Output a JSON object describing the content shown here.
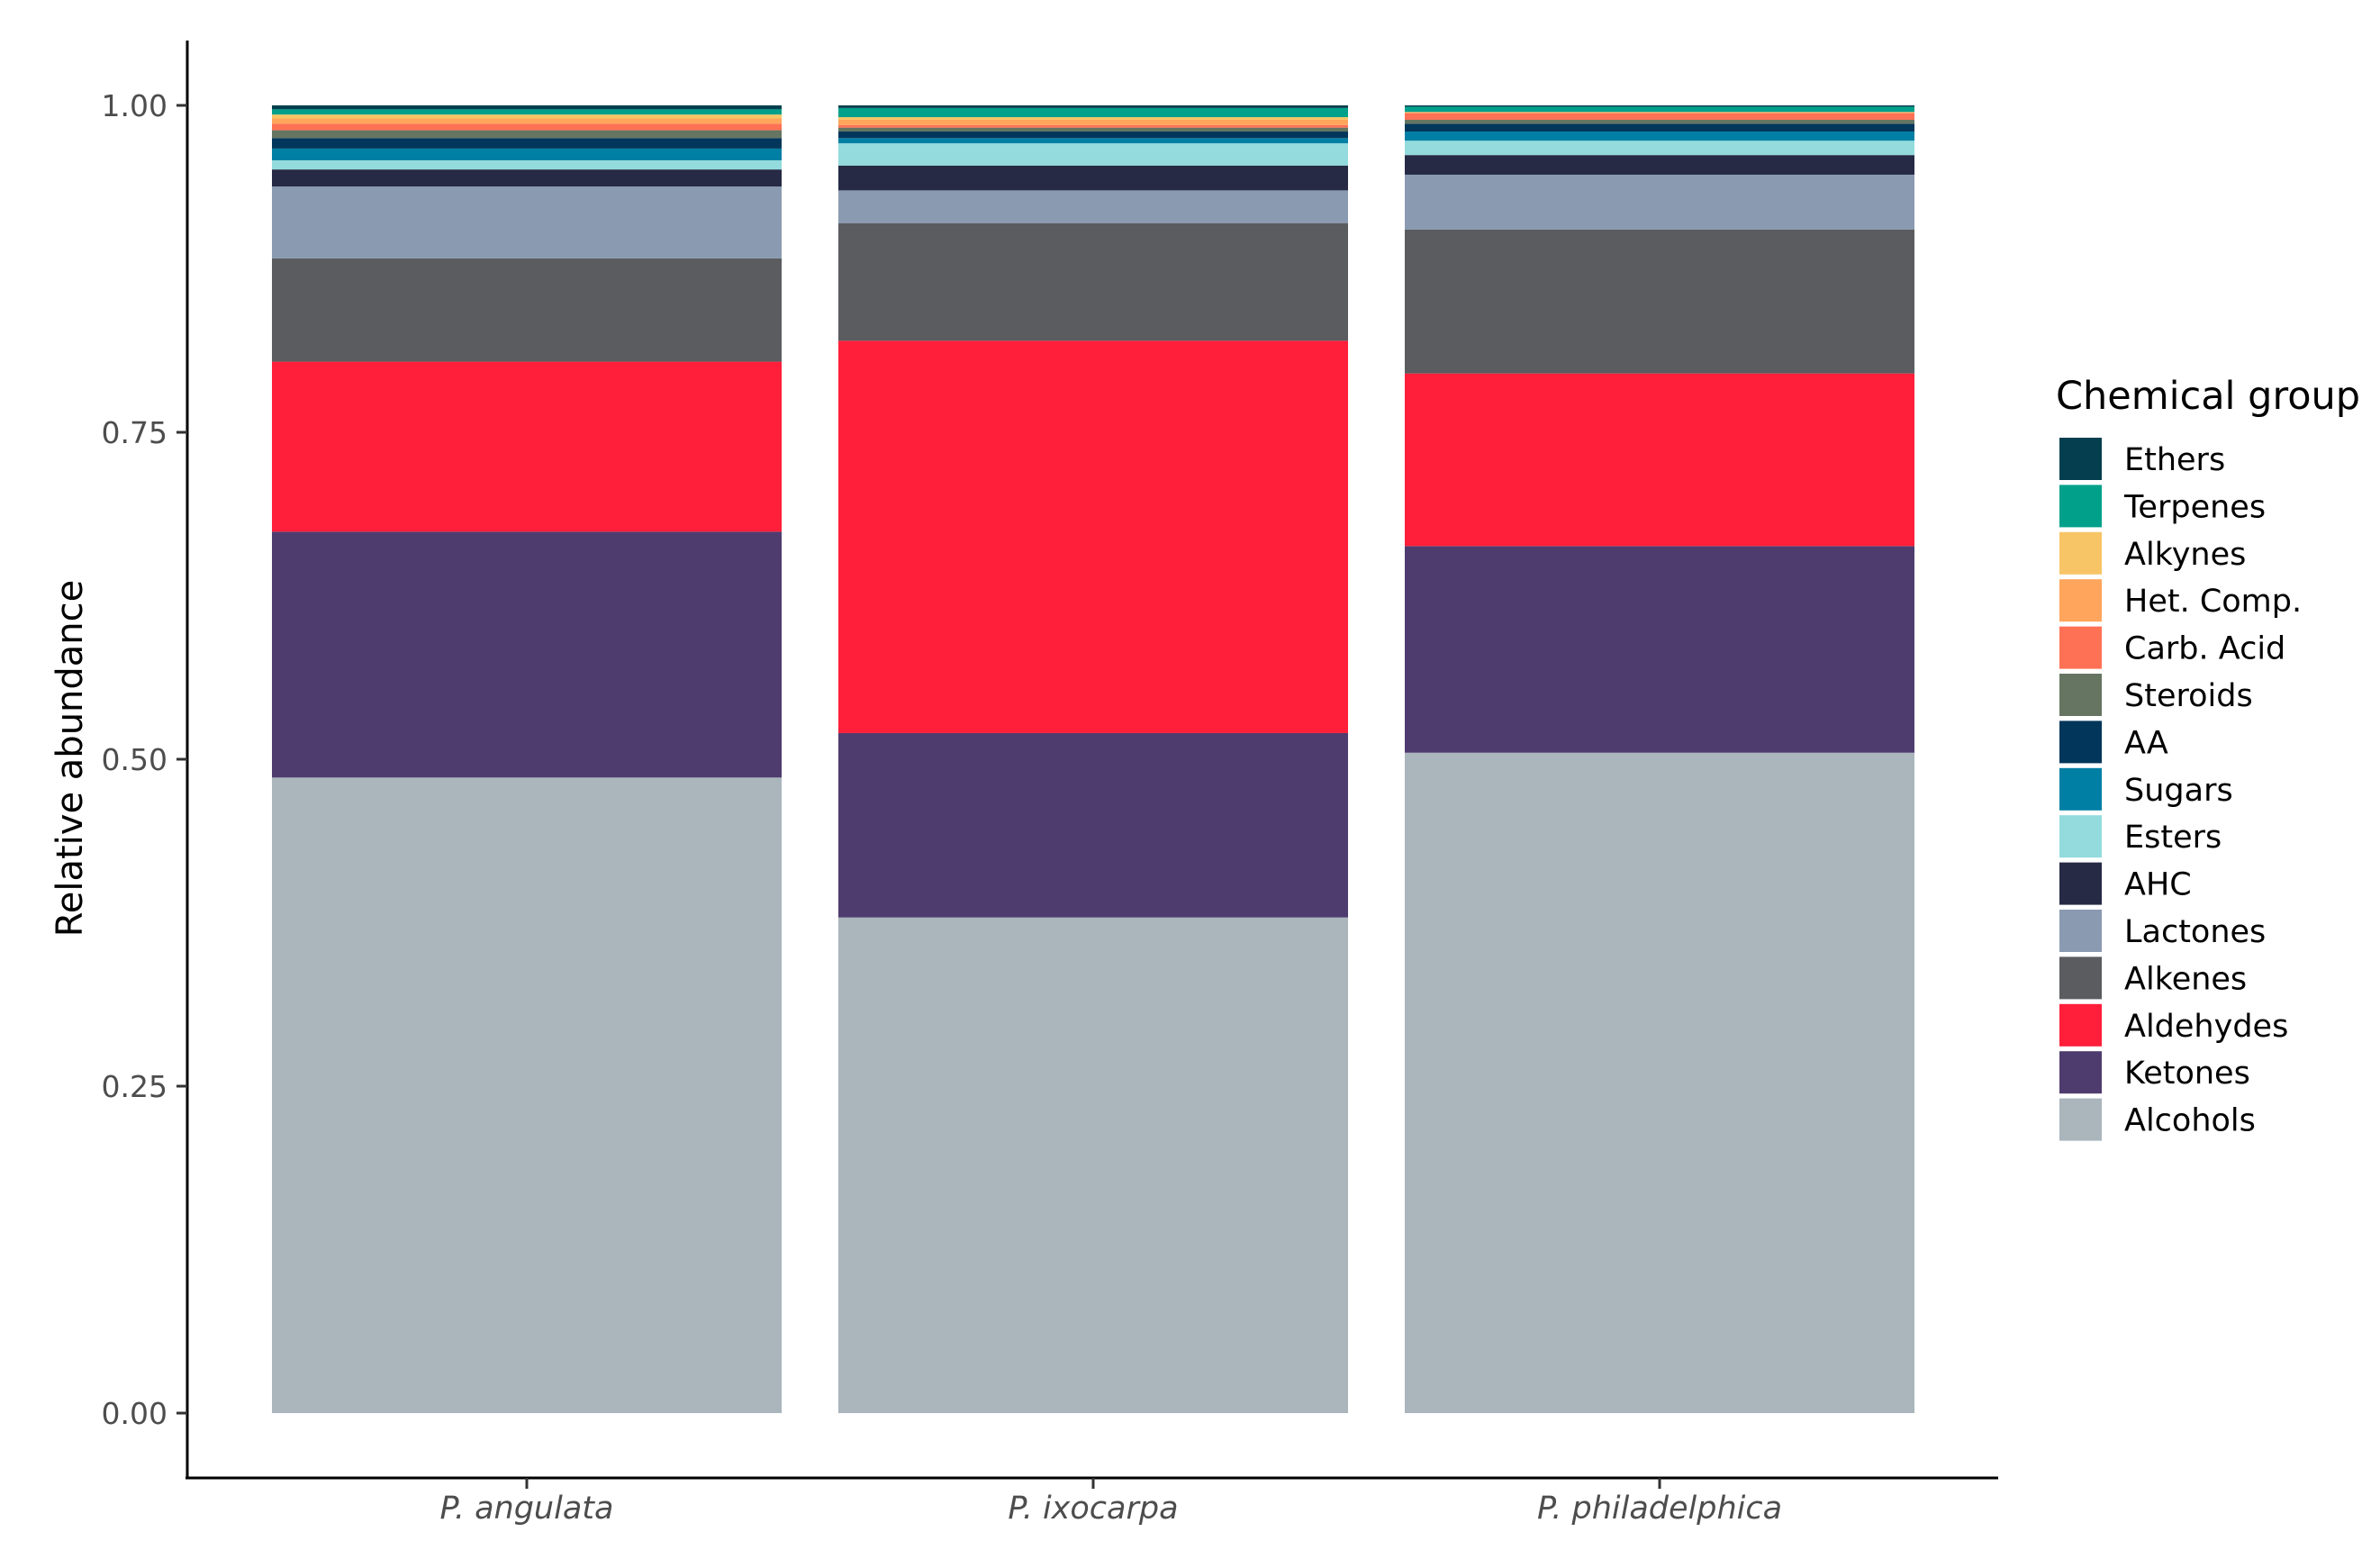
{
  "chart_data": {
    "type": "bar",
    "stacked": true,
    "normalized": true,
    "categories": [
      "P. angulata",
      "P. ixocarpa",
      "P. philadelphica"
    ],
    "ylabel": "Relative abundance",
    "xlabel": "",
    "ylim": [
      0,
      1
    ],
    "yticks": [
      "0.00",
      "0.25",
      "0.50",
      "0.75",
      "1.00"
    ],
    "grid": false,
    "legend": {
      "title": "Chemical group",
      "position": "right"
    },
    "series": [
      {
        "name": "Alcohols",
        "color": "#aab5bc",
        "values": [
          0.486,
          0.379,
          0.505
        ]
      },
      {
        "name": "Ketones",
        "color": "#4f3c6f",
        "values": [
          0.188,
          0.141,
          0.158
        ]
      },
      {
        "name": "Aldehydes",
        "color": "#ff1f3a",
        "values": [
          0.13,
          0.3,
          0.132
        ]
      },
      {
        "name": "Alkenes",
        "color": "#5a5c60",
        "values": [
          0.079,
          0.09,
          0.11
        ]
      },
      {
        "name": "Lactones",
        "color": "#8a9ab0",
        "values": [
          0.055,
          0.025,
          0.042
        ]
      },
      {
        "name": "AHC",
        "color": "#262a45",
        "values": [
          0.013,
          0.019,
          0.015
        ]
      },
      {
        "name": "Esters",
        "color": "#93dbdc",
        "values": [
          0.007,
          0.017,
          0.011
        ]
      },
      {
        "name": "Sugars",
        "color": "#007fa4",
        "values": [
          0.009,
          0.004,
          0.007
        ]
      },
      {
        "name": "AA",
        "color": "#02365a",
        "values": [
          0.008,
          0.005,
          0.006
        ]
      },
      {
        "name": "Steroids",
        "color": "#667561",
        "values": [
          0.006,
          0.003,
          0.003
        ]
      },
      {
        "name": "Carb. Acid",
        "color": "#ff7154",
        "values": [
          0.005,
          0.002,
          0.005
        ]
      },
      {
        "name": "Het. Comp.",
        "color": "#ffa55c",
        "values": [
          0.004,
          0.004,
          0.001
        ]
      },
      {
        "name": "Alkynes",
        "color": "#f7c566",
        "values": [
          0.003,
          0.002,
          0.0
        ]
      },
      {
        "name": "Terpenes",
        "color": "#00a08a",
        "values": [
          0.004,
          0.007,
          0.004
        ]
      },
      {
        "name": "Ethers",
        "color": "#053f4f",
        "values": [
          0.003,
          0.002,
          0.001
        ]
      }
    ],
    "legend_order": [
      "Ethers",
      "Terpenes",
      "Alkynes",
      "Het. Comp.",
      "Carb. Acid",
      "Steroids",
      "AA",
      "Sugars",
      "Esters",
      "AHC",
      "Lactones",
      "Alkenes",
      "Aldehydes",
      "Ketones",
      "Alcohols"
    ]
  }
}
